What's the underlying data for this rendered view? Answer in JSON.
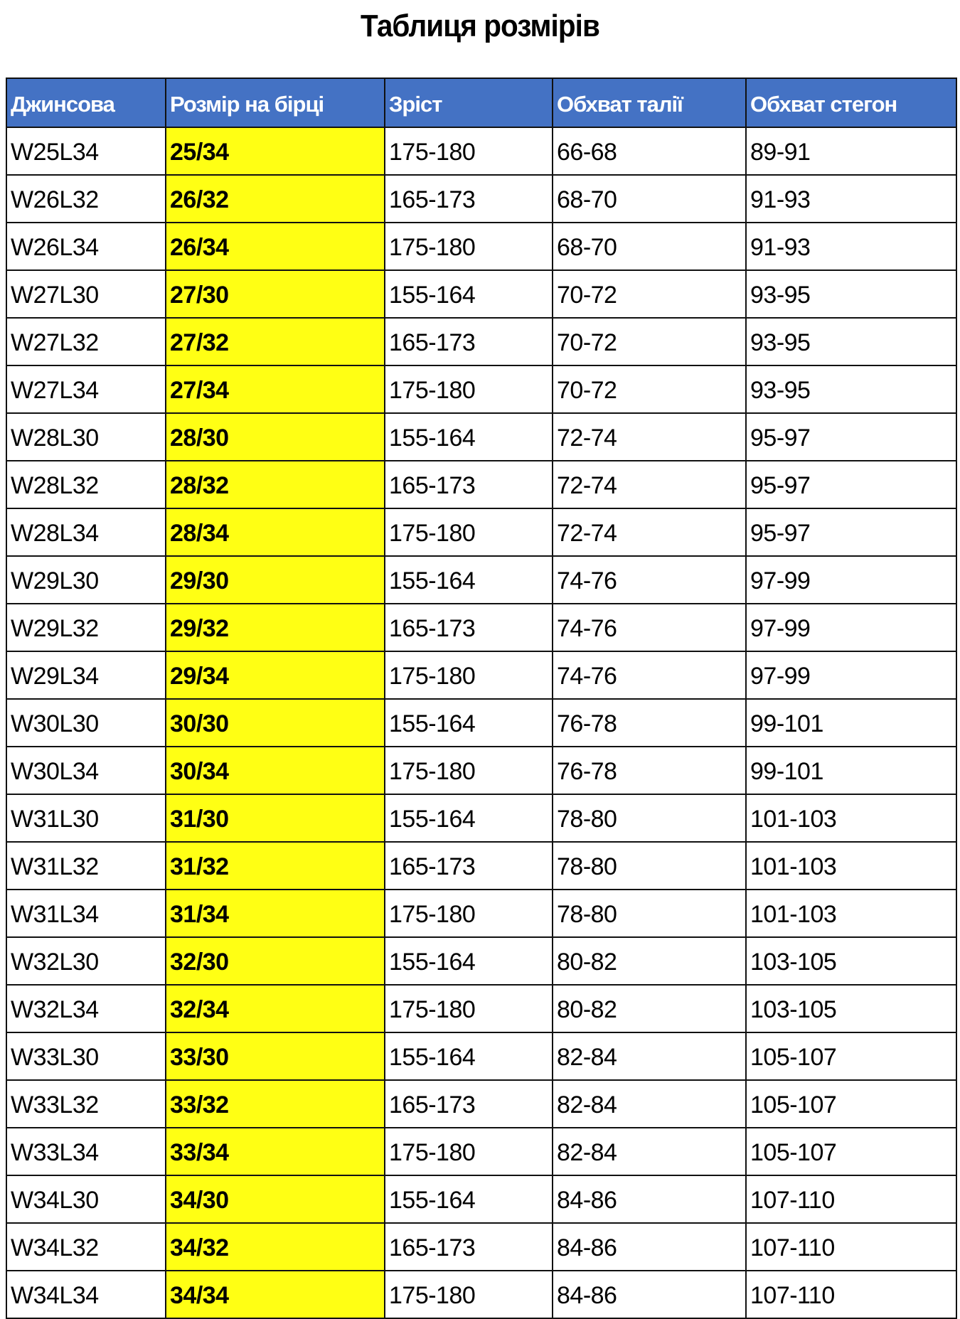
{
  "title": "Таблиця розмірів",
  "colors": {
    "header_bg": "#4472C4",
    "highlight": "#FFFF14"
  },
  "table": {
    "headers": [
      "Джинсова",
      "Розмір на бірці",
      "Зріст",
      "Обхват талії",
      "Обхват стегон"
    ],
    "rows": [
      [
        "W25L34",
        "25/34",
        "175-180",
        "66-68",
        "89-91"
      ],
      [
        "W26L32",
        "26/32",
        "165-173",
        "68-70",
        "91-93"
      ],
      [
        "W26L34",
        "26/34",
        "175-180",
        "68-70",
        "91-93"
      ],
      [
        "W27L30",
        "27/30",
        "155-164",
        "70-72",
        "93-95"
      ],
      [
        "W27L32",
        "27/32",
        "165-173",
        "70-72",
        "93-95"
      ],
      [
        "W27L34",
        "27/34",
        "175-180",
        "70-72",
        "93-95"
      ],
      [
        "W28L30",
        "28/30",
        "155-164",
        "72-74",
        "95-97"
      ],
      [
        "W28L32",
        "28/32",
        "165-173",
        "72-74",
        "95-97"
      ],
      [
        "W28L34",
        "28/34",
        "175-180",
        "72-74",
        "95-97"
      ],
      [
        "W29L30",
        "29/30",
        "155-164",
        "74-76",
        "97-99"
      ],
      [
        "W29L32",
        "29/32",
        "165-173",
        "74-76",
        "97-99"
      ],
      [
        "W29L34",
        "29/34",
        "175-180",
        "74-76",
        "97-99"
      ],
      [
        "W30L30",
        "30/30",
        "155-164",
        "76-78",
        "99-101"
      ],
      [
        "W30L34",
        "30/34",
        "175-180",
        "76-78",
        "99-101"
      ],
      [
        "W31L30",
        "31/30",
        "155-164",
        "78-80",
        "101-103"
      ],
      [
        "W31L32",
        "31/32",
        "165-173",
        "78-80",
        "101-103"
      ],
      [
        "W31L34",
        "31/34",
        "175-180",
        "78-80",
        "101-103"
      ],
      [
        "W32L30",
        "32/30",
        "155-164",
        "80-82",
        "103-105"
      ],
      [
        "W32L34",
        "32/34",
        "175-180",
        "80-82",
        "103-105"
      ],
      [
        "W33L30",
        "33/30",
        "155-164",
        "82-84",
        "105-107"
      ],
      [
        "W33L32",
        "33/32",
        "165-173",
        "82-84",
        "105-107"
      ],
      [
        "W33L34",
        "33/34",
        "175-180",
        "82-84",
        "105-107"
      ],
      [
        "W34L30",
        "34/30",
        "155-164",
        "84-86",
        "107-110"
      ],
      [
        "W34L32",
        "34/32",
        "165-173",
        "84-86",
        "107-110"
      ],
      [
        "W34L34",
        "34/34",
        "175-180",
        "84-86",
        "107-110"
      ]
    ]
  }
}
